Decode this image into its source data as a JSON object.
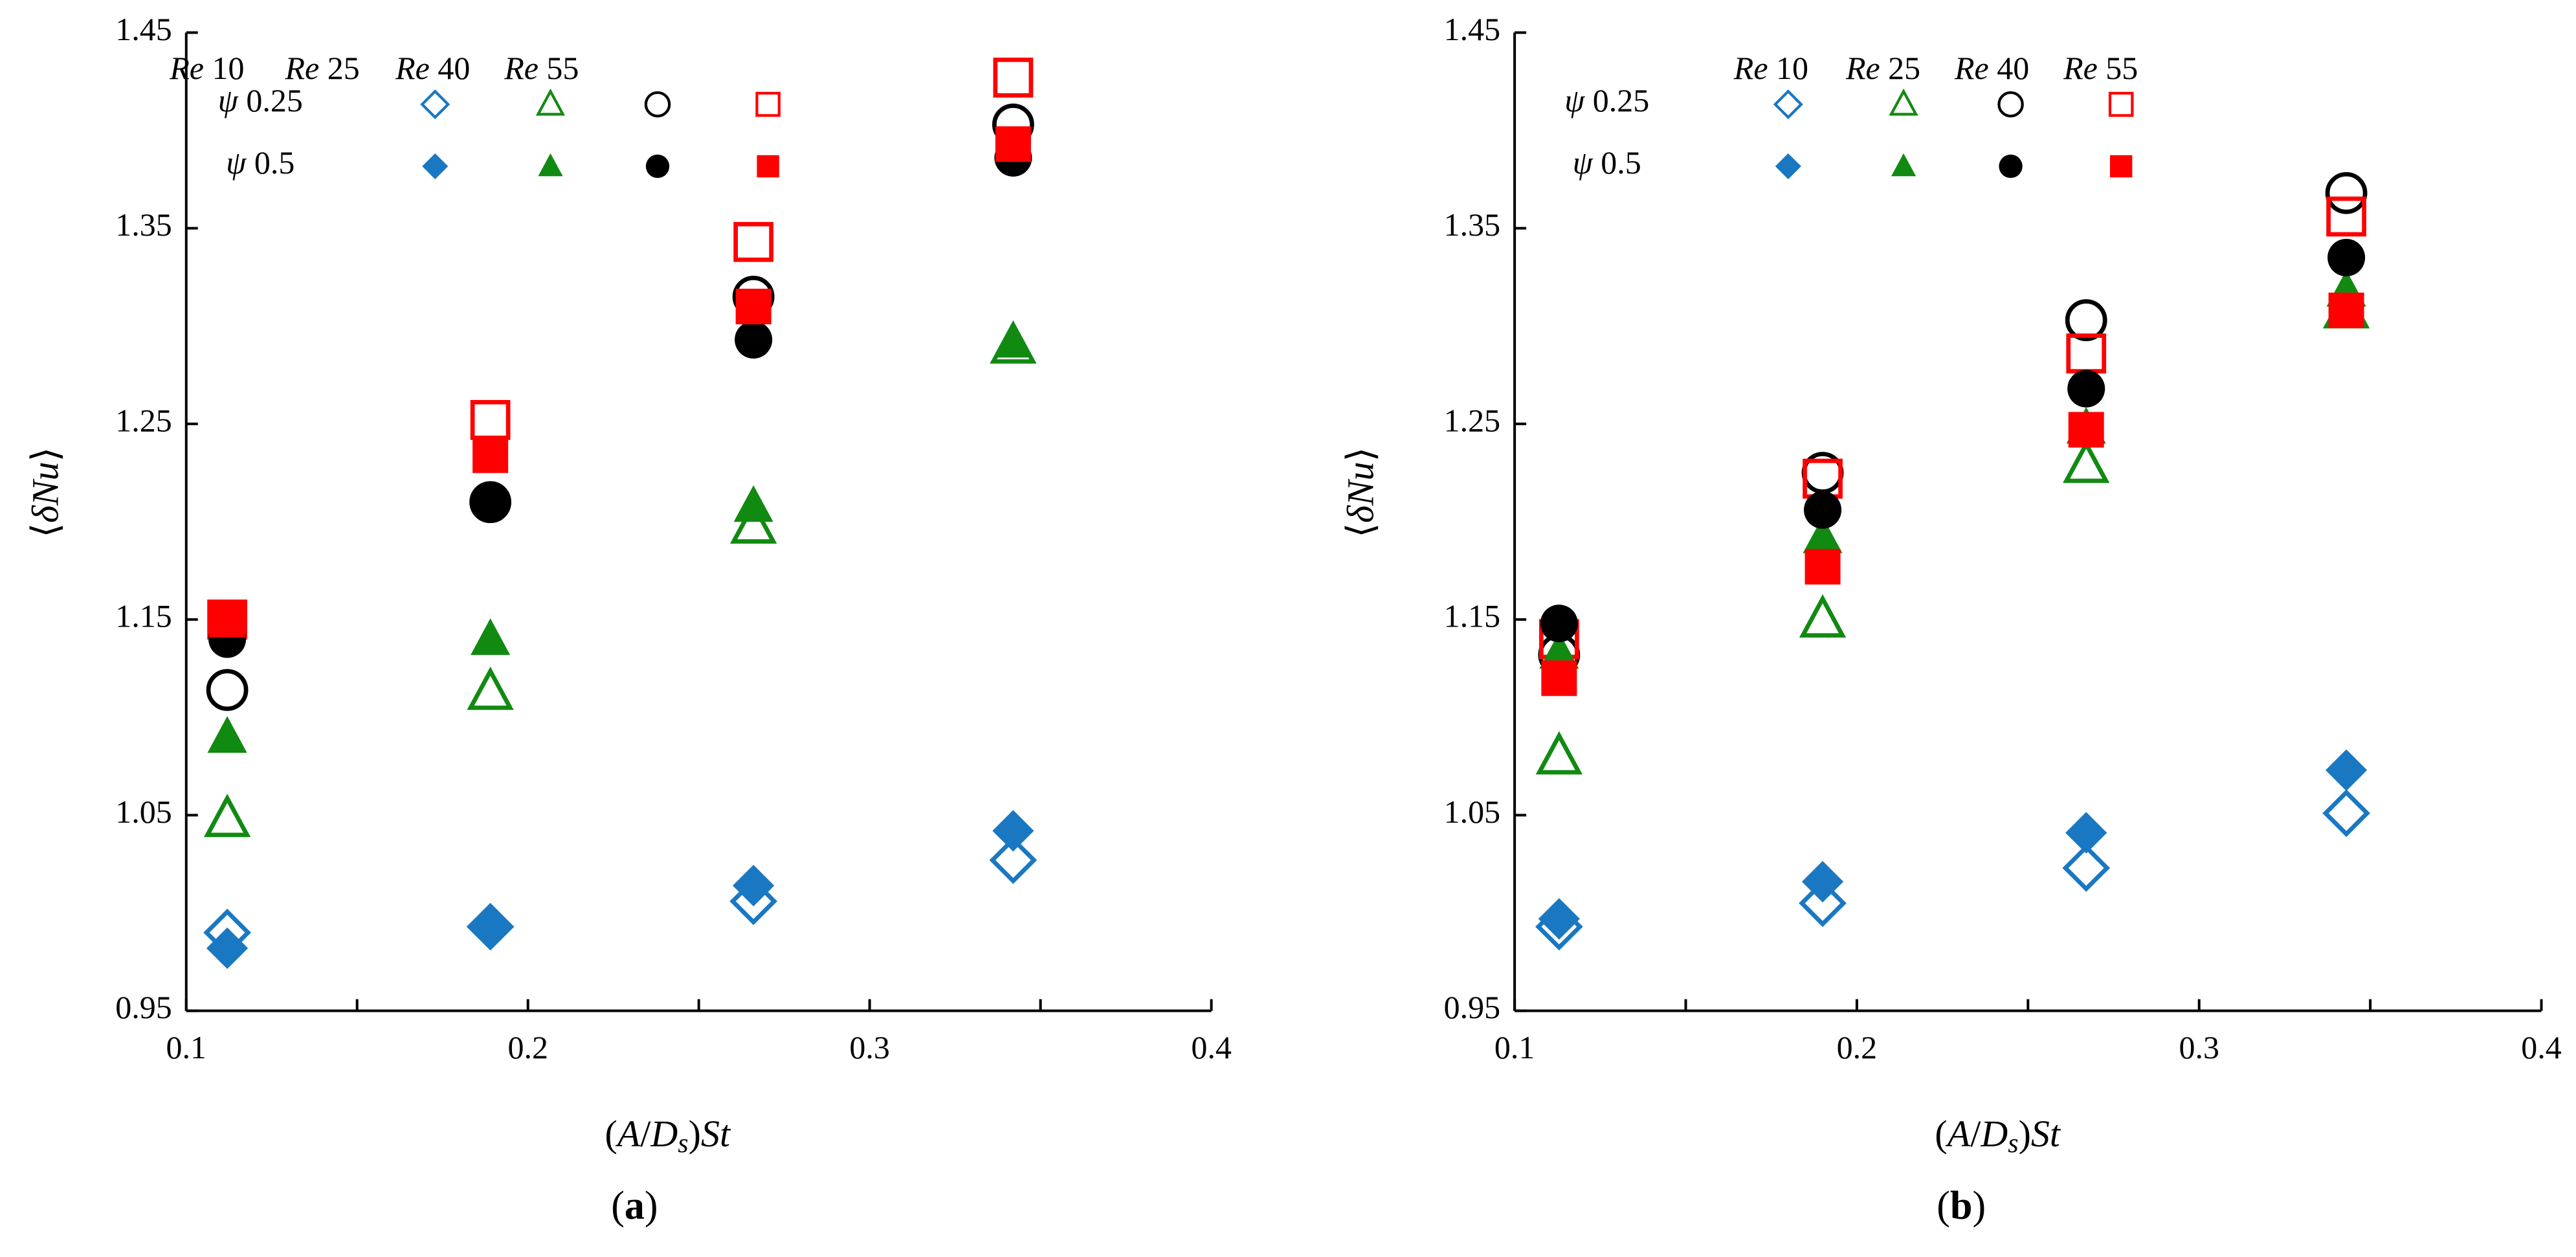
{
  "figure": {
    "panel_labels": [
      "(a)",
      "(b)"
    ],
    "x_axis_label": "(A/Ds)St",
    "y_axis_label": "⟨δNu⟩"
  },
  "legend": {
    "columns": [
      "Re 10",
      "Re 25",
      "Re 40",
      "Re 55"
    ],
    "rows": [
      "ψ 0.25",
      "ψ 0.5"
    ]
  },
  "colors": {
    "Re 10": "#1a78c2",
    "Re 25": "#118a11",
    "Re 40": "#000000",
    "Re 55": "#ff0000"
  },
  "markers": {
    "Re 10": "diamond",
    "Re 25": "triangle",
    "Re 40": "circle",
    "Re 55": "square",
    "ψ 0.25": "open",
    "ψ 0.5": "filled"
  },
  "chart_data": [
    {
      "type": "scatter",
      "panel": "(a)",
      "xlabel": "(A/Ds)St",
      "ylabel": "⟨δNu⟩",
      "xlim": [
        0.1,
        0.4
      ],
      "ylim": [
        0.95,
        1.45
      ],
      "xticks": [
        "0.1",
        "0.2",
        "0.3",
        "0.4"
      ],
      "yticks": [
        "0.95",
        "1.05",
        "1.15",
        "1.25",
        "1.35",
        "1.45"
      ],
      "grid": false,
      "legend_position": "top",
      "series": [
        {
          "name": "ψ 0.25 Re 10",
          "re": "Re 10",
          "psi": "0.25",
          "x": [
            0.112,
            0.189,
            0.266,
            0.342
          ],
          "y": [
            0.99,
            0.993,
            1.006,
            1.027
          ]
        },
        {
          "name": "ψ 0.25 Re 25",
          "re": "Re 25",
          "psi": "0.25",
          "x": [
            0.112,
            0.189,
            0.266,
            0.342
          ],
          "y": [
            1.048,
            1.113,
            1.198,
            1.29
          ]
        },
        {
          "name": "ψ 0.25 Re 40",
          "re": "Re 40",
          "psi": "0.25",
          "x": [
            0.112,
            0.189,
            0.266,
            0.342
          ],
          "y": [
            1.114,
            1.21,
            1.315,
            1.403
          ]
        },
        {
          "name": "ψ 0.25 Re 55",
          "re": "Re 55",
          "psi": "0.25",
          "x": [
            0.112,
            0.189,
            0.266,
            0.342
          ],
          "y": [
            1.15,
            1.252,
            1.343,
            1.427
          ]
        },
        {
          "name": "ψ 0.5 Re 10",
          "re": "Re 10",
          "psi": "0.5",
          "x": [
            0.112,
            0.189,
            0.266,
            0.342
          ],
          "y": [
            0.982,
            0.994,
            1.014,
            1.042
          ]
        },
        {
          "name": "ψ 0.5 Re 25",
          "re": "Re 25",
          "psi": "0.5",
          "x": [
            0.112,
            0.189,
            0.266,
            0.342
          ],
          "y": [
            1.09,
            1.14,
            1.208,
            1.292
          ]
        },
        {
          "name": "ψ 0.5 Re 40",
          "re": "Re 40",
          "psi": "0.5",
          "x": [
            0.112,
            0.189,
            0.266,
            0.342
          ],
          "y": [
            1.14,
            1.21,
            1.293,
            1.386
          ]
        },
        {
          "name": "ψ 0.5 Re 55",
          "re": "Re 55",
          "psi": "0.5",
          "x": [
            0.112,
            0.189,
            0.266,
            0.342
          ],
          "y": [
            1.15,
            1.234,
            1.31,
            1.393
          ]
        }
      ]
    },
    {
      "type": "scatter",
      "panel": "(b)",
      "xlabel": "(A/Ds)St",
      "ylabel": "⟨δNu⟩",
      "xlim": [
        0.1,
        0.4
      ],
      "ylim": [
        0.95,
        1.45
      ],
      "xticks": [
        "0.1",
        "0.2",
        "0.3",
        "0.4"
      ],
      "yticks": [
        "0.95",
        "1.05",
        "1.15",
        "1.25",
        "1.35",
        "1.45"
      ],
      "grid": false,
      "legend_position": "top",
      "series": [
        {
          "name": "ψ 0.25 Re 10",
          "re": "Re 10",
          "psi": "0.25",
          "x": [
            0.113,
            0.19,
            0.267,
            0.343
          ],
          "y": [
            0.993,
            1.005,
            1.023,
            1.051
          ]
        },
        {
          "name": "ψ 0.25 Re 25",
          "re": "Re 25",
          "psi": "0.25",
          "x": [
            0.113,
            0.19,
            0.267,
            0.343
          ],
          "y": [
            1.08,
            1.15,
            1.229,
            1.308
          ]
        },
        {
          "name": "ψ 0.25 Re 40",
          "re": "Re 40",
          "psi": "0.25",
          "x": [
            0.113,
            0.19,
            0.267,
            0.343
          ],
          "y": [
            1.132,
            1.225,
            1.303,
            1.368
          ]
        },
        {
          "name": "ψ 0.25 Re 55",
          "re": "Re 55",
          "psi": "0.25",
          "x": [
            0.113,
            0.19,
            0.267,
            0.343
          ],
          "y": [
            1.14,
            1.222,
            1.286,
            1.356
          ]
        },
        {
          "name": "ψ 0.5 Re 10",
          "re": "Re 10",
          "psi": "0.5",
          "x": [
            0.113,
            0.19,
            0.267,
            0.343
          ],
          "y": [
            0.997,
            1.016,
            1.041,
            1.073
          ]
        },
        {
          "name": "ψ 0.5 Re 25",
          "re": "Re 25",
          "psi": "0.5",
          "x": [
            0.113,
            0.19,
            0.267,
            0.343
          ],
          "y": [
            1.133,
            1.192,
            1.248,
            1.318
          ]
        },
        {
          "name": "ψ 0.5 Re 40",
          "re": "Re 40",
          "psi": "0.5",
          "x": [
            0.113,
            0.19,
            0.267,
            0.343
          ],
          "y": [
            1.148,
            1.206,
            1.268,
            1.335
          ]
        },
        {
          "name": "ψ 0.5 Re 55",
          "re": "Re 55",
          "psi": "0.5",
          "x": [
            0.113,
            0.19,
            0.267,
            0.343
          ],
          "y": [
            1.12,
            1.177,
            1.247,
            1.308
          ]
        }
      ]
    }
  ]
}
